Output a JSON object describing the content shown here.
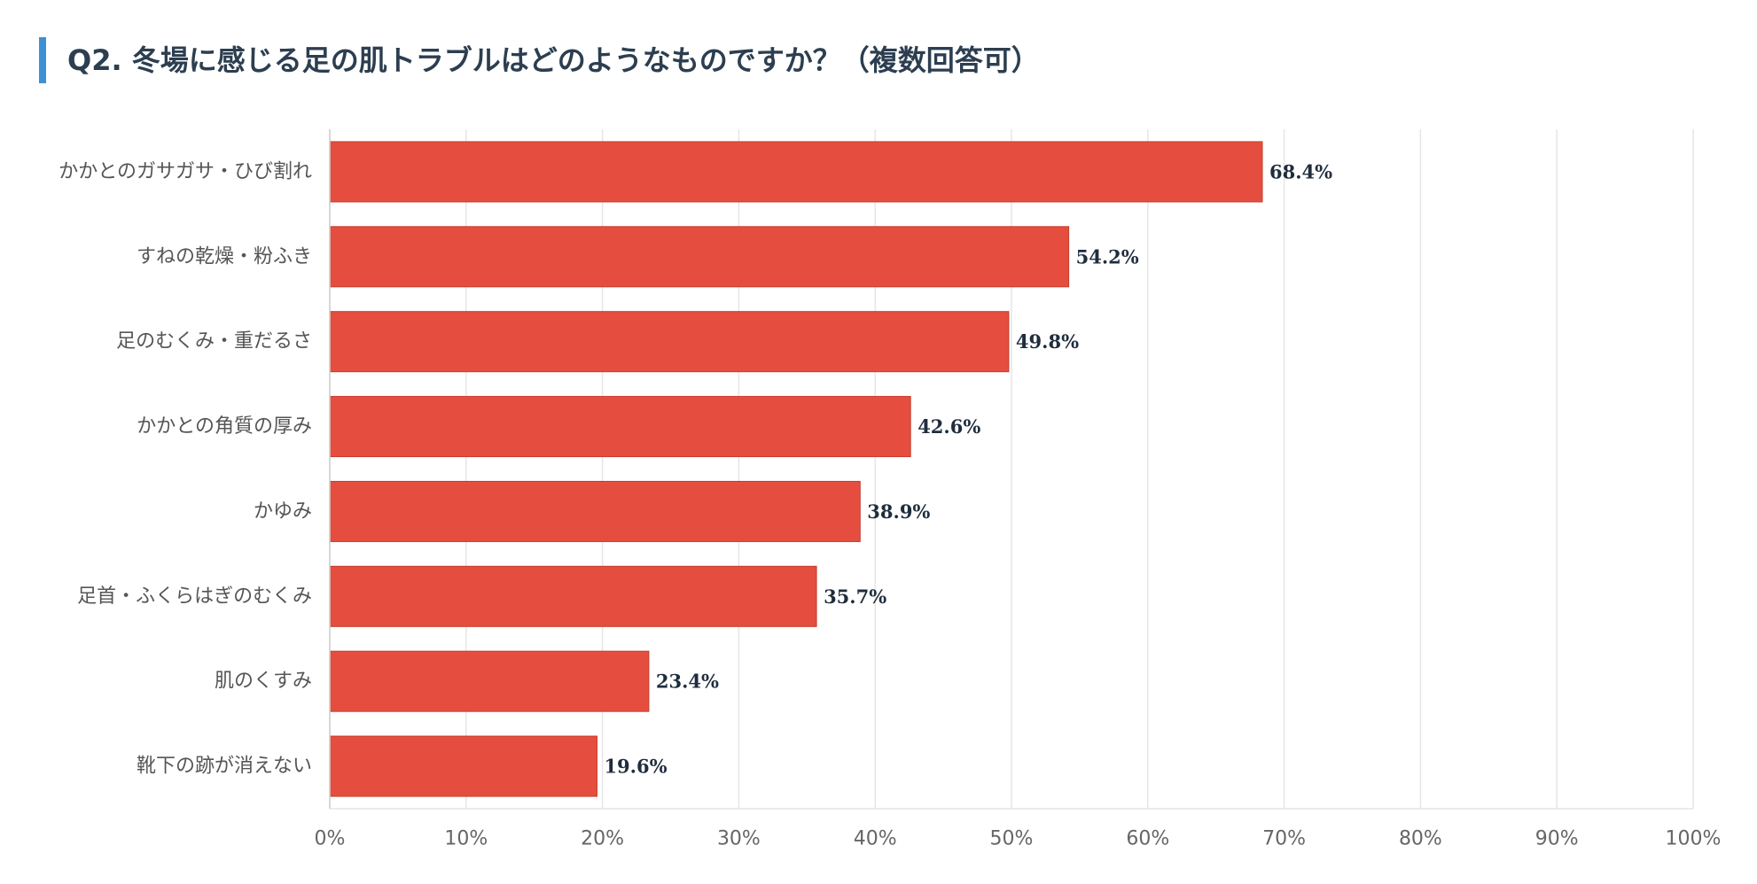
{
  "header": {
    "title": "Q2. 冬場に感じる足の肌トラブルはどのようなものですか？（複数回答可）"
  },
  "colors": {
    "accent": "#3d8fd6",
    "bar": "#e54e3f",
    "bar_stroke": "#c63a2c",
    "grid": "#e6e6e6",
    "title": "#2c3e50"
  },
  "chart_data": {
    "type": "bar",
    "orientation": "horizontal",
    "categories": [
      "かかとのガサガサ・ひび割れ",
      "すねの乾燥・粉ふき",
      "足のむくみ・重だるさ",
      "かかとの角質の厚み",
      "かゆみ",
      "足首・ふくらはぎのむくみ",
      "肌のくすみ",
      "靴下の跡が消えない"
    ],
    "values": [
      68.4,
      54.2,
      49.8,
      42.6,
      38.9,
      35.7,
      23.4,
      19.6
    ],
    "data_labels": [
      "68.4%",
      "54.2%",
      "49.8%",
      "42.6%",
      "38.9%",
      "35.7%",
      "23.4%",
      "19.6%"
    ],
    "xlim": [
      0,
      100
    ],
    "x_ticks": [
      0,
      10,
      20,
      30,
      40,
      50,
      60,
      70,
      80,
      90,
      100
    ],
    "x_tick_labels": [
      "0%",
      "10%",
      "20%",
      "30%",
      "40%",
      "50%",
      "60%",
      "70%",
      "80%",
      "90%",
      "100%"
    ],
    "grid": true,
    "legend": "none"
  }
}
